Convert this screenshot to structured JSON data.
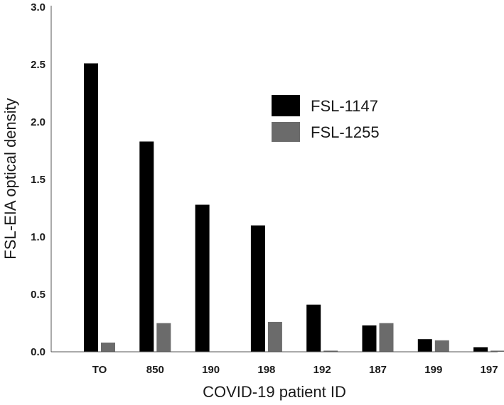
{
  "chart_data": {
    "type": "bar",
    "title": "",
    "xlabel": "COVID-19 patient ID",
    "ylabel": "FSL-EIA optical density",
    "ylim": [
      0,
      3.0
    ],
    "yticks": [
      "0.0",
      "0.5",
      "1.0",
      "1.5",
      "2.0",
      "2.5",
      "3.0"
    ],
    "categories": [
      "TO",
      "850",
      "190",
      "198",
      "192",
      "187",
      "199",
      "197"
    ],
    "series": [
      {
        "name": "FSL-1147",
        "color": "#000000",
        "values": [
          2.51,
          1.83,
          1.28,
          1.1,
          0.41,
          0.23,
          0.11,
          0.04
        ]
      },
      {
        "name": "FSL-1255",
        "color": "#6b6b6b",
        "values": [
          0.08,
          0.25,
          0.0,
          0.26,
          0.01,
          0.25,
          0.1,
          0.01
        ]
      }
    ],
    "legend_position": "top-right",
    "grid": false
  }
}
